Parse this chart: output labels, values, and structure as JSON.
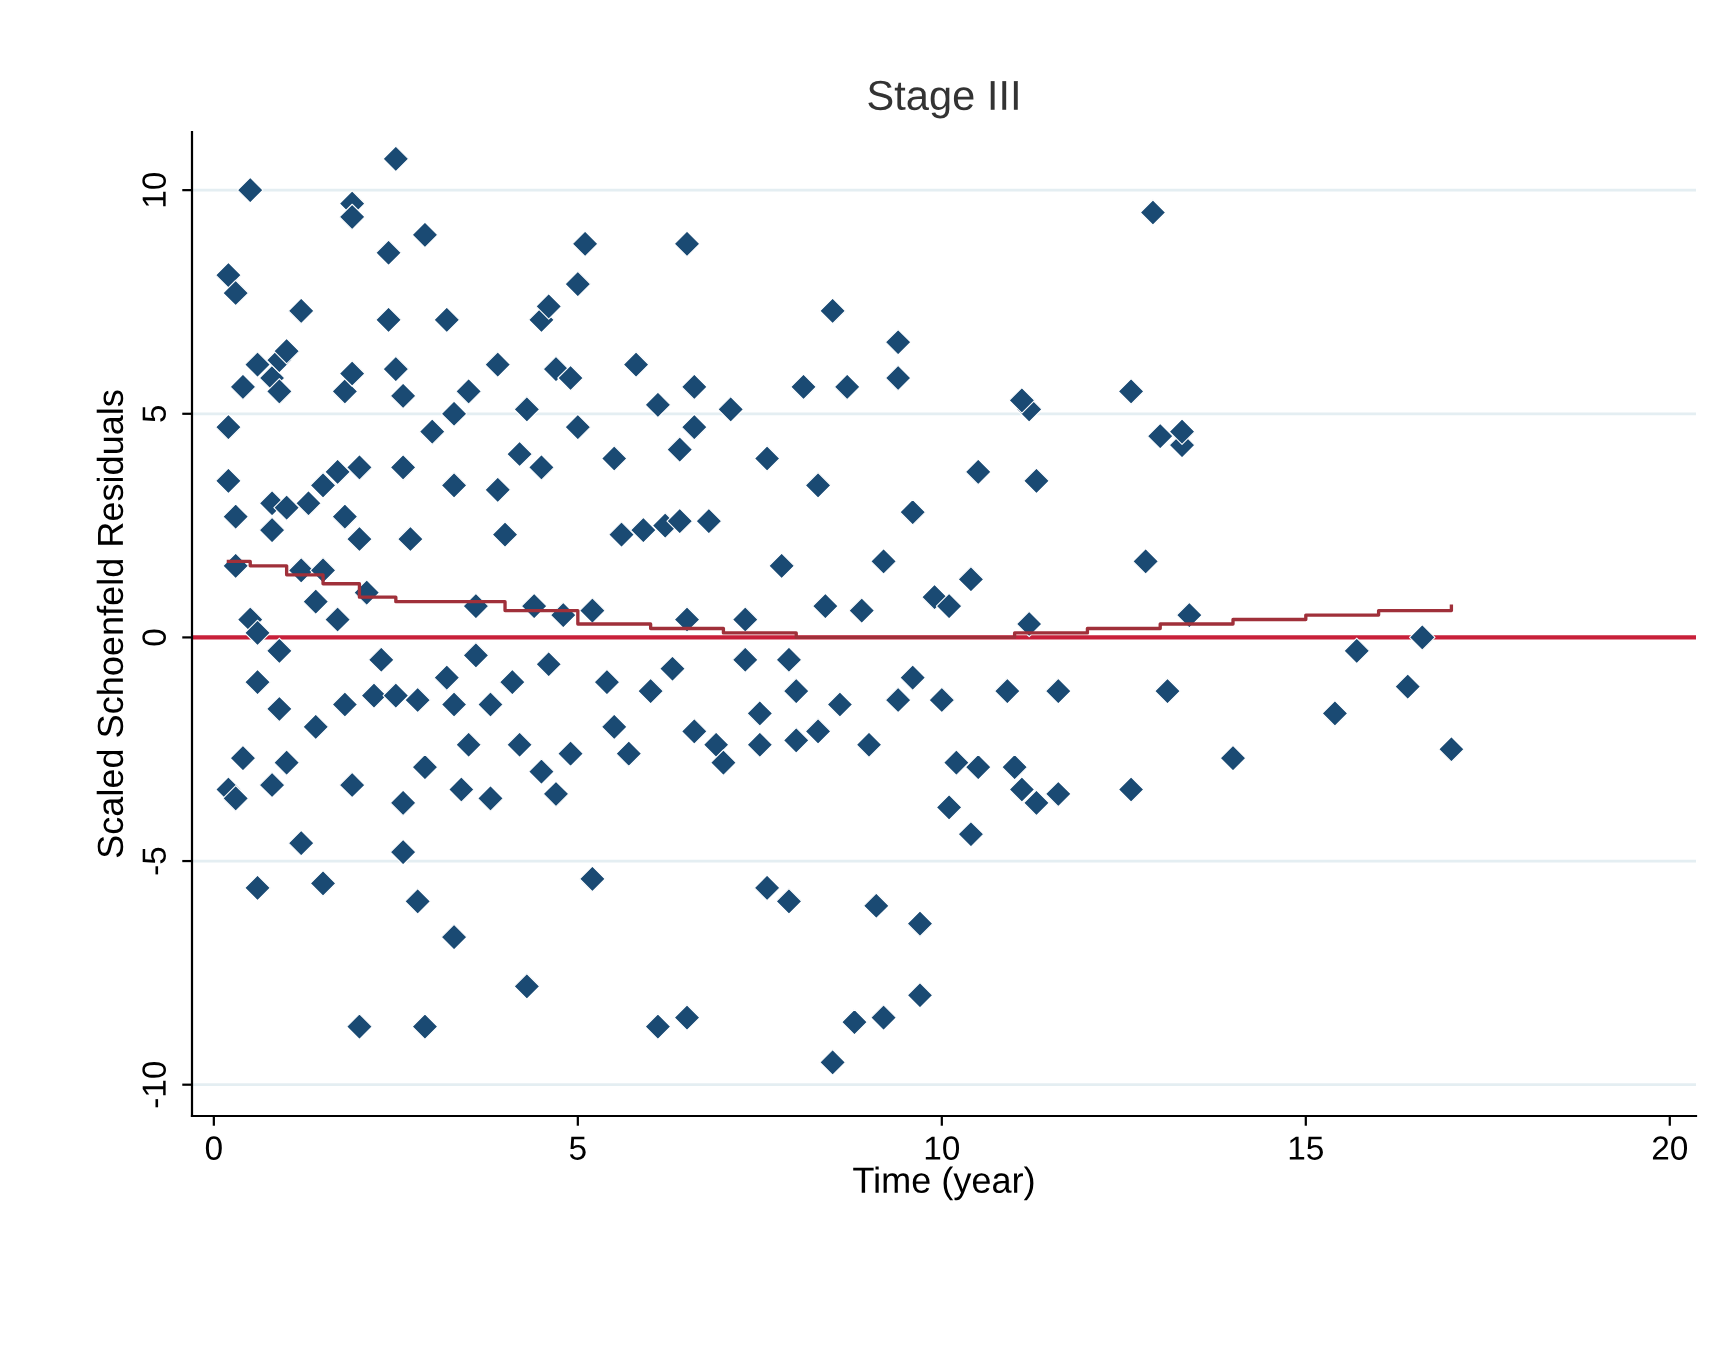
{
  "chart_data": {
    "type": "scatter",
    "title": "Stage III",
    "xlabel": "Time (year)",
    "ylabel": "Scaled Schoenfeld Residuals",
    "xlim": [
      -0.3,
      20.36
    ],
    "ylim": [
      -10.7,
      11.3
    ],
    "xticks": [
      0,
      5,
      10,
      15,
      20
    ],
    "yticks": [
      -10,
      -5,
      0,
      5,
      10
    ],
    "grid": "y",
    "series": [
      {
        "marker": "diamond",
        "color": "#1a4a73",
        "x": [
          0.2,
          0.3,
          0.5,
          0.2,
          0.2,
          0.3,
          0.3,
          0.5,
          0.6,
          0.6,
          0.2,
          0.3,
          0.4,
          0.6,
          0.4,
          0.6,
          0.8,
          0.9,
          1.0,
          0.9,
          1.2,
          0.8,
          1.0,
          0.8,
          1.3,
          1.2,
          1.4,
          0.9,
          0.9,
          1.0,
          0.8,
          1.2,
          1.4,
          1.5,
          1.5,
          1.7,
          1.8,
          1.5,
          1.7,
          1.8,
          1.9,
          1.9,
          1.9,
          2.0,
          2.0,
          2.1,
          1.8,
          1.9,
          2.0,
          2.2,
          2.3,
          2.4,
          2.4,
          2.5,
          2.5,
          2.6,
          2.6,
          2.7,
          2.5,
          2.6,
          2.6,
          2.8,
          2.8,
          2.9,
          2.9,
          2.9,
          3.0,
          3.2,
          3.3,
          3.3,
          3.2,
          3.3,
          3.4,
          3.3,
          3.5,
          3.6,
          3.6,
          3.5,
          3.8,
          3.8,
          3.9,
          3.9,
          4.0,
          4.2,
          4.1,
          4.2,
          4.3,
          4.3,
          4.5,
          4.6,
          4.7,
          4.5,
          4.4,
          4.6,
          4.5,
          4.7,
          4.9,
          4.8,
          4.9,
          5.0,
          5.0,
          5.1,
          5.2,
          5.2,
          5.4,
          5.5,
          5.6,
          5.5,
          5.7,
          5.8,
          5.9,
          6.0,
          6.1,
          6.1,
          6.2,
          6.3,
          6.4,
          6.4,
          6.5,
          6.5,
          6.6,
          6.6,
          6.6,
          6.5,
          6.8,
          6.9,
          7.1,
          7.0,
          7.3,
          7.3,
          7.5,
          7.5,
          7.6,
          7.6,
          7.9,
          7.8,
          7.9,
          8.0,
          8.0,
          8.1,
          8.3,
          8.3,
          8.4,
          8.5,
          8.5,
          8.6,
          8.7,
          8.8,
          8.9,
          9.0,
          9.1,
          9.2,
          9.2,
          9.4,
          9.4,
          9.4,
          9.6,
          9.6,
          9.7,
          9.7,
          9.9,
          10.0,
          10.1,
          10.1,
          10.2,
          10.4,
          10.4,
          10.5,
          10.5,
          10.9,
          11.0,
          11.1,
          11.2,
          11.1,
          11.2,
          11.3,
          11.3,
          11.6,
          11.6,
          12.6,
          12.6,
          12.9,
          12.8,
          13.0,
          13.1,
          13.3,
          13.3,
          13.4,
          14.0,
          15.4,
          15.7,
          16.4,
          16.6,
          17.0
        ],
        "values": [
          8.1,
          7.7,
          10.0,
          4.7,
          3.5,
          2.7,
          1.6,
          0.4,
          0.1,
          -1.0,
          -3.4,
          -3.6,
          -2.7,
          -5.6,
          5.6,
          6.1,
          5.8,
          6.2,
          6.4,
          5.5,
          7.3,
          3.0,
          2.9,
          2.4,
          3.0,
          1.5,
          0.8,
          -0.3,
          -1.6,
          -2.8,
          -3.3,
          -4.6,
          -2.0,
          -5.5,
          3.4,
          3.7,
          2.7,
          1.5,
          0.4,
          5.5,
          5.9,
          9.7,
          9.4,
          3.8,
          2.2,
          1.0,
          -1.5,
          -3.3,
          -8.7,
          -1.3,
          -0.5,
          8.6,
          7.1,
          10.7,
          6.0,
          5.4,
          3.8,
          2.2,
          -1.3,
          -3.7,
          -4.8,
          -5.9,
          -1.4,
          -2.9,
          -8.7,
          9.0,
          4.6,
          7.1,
          5.0,
          3.4,
          -0.9,
          -1.5,
          -3.4,
          -6.7,
          5.5,
          0.7,
          -0.4,
          -2.4,
          -1.5,
          -3.6,
          6.1,
          3.3,
          2.3,
          4.1,
          -1.0,
          -2.4,
          -7.8,
          5.1,
          7.1,
          7.4,
          6.0,
          3.8,
          0.7,
          -0.6,
          -3.0,
          -3.5,
          -2.6,
          0.5,
          5.8,
          4.7,
          7.9,
          8.8,
          -5.4,
          0.6,
          -1.0,
          4.0,
          2.3,
          -2.0,
          -2.6,
          6.1,
          2.4,
          -1.2,
          5.2,
          -8.7,
          2.5,
          -0.7,
          2.6,
          4.2,
          8.8,
          0.4,
          5.6,
          4.7,
          -2.1,
          -8.5,
          2.6,
          -2.4,
          5.1,
          -2.8,
          0.4,
          -0.5,
          -1.7,
          -2.4,
          4.0,
          -5.6,
          -5.9,
          1.6,
          -0.5,
          -1.2,
          -2.3,
          5.6,
          -2.1,
          3.4,
          0.7,
          7.3,
          -9.5,
          -1.5,
          5.6,
          -8.6,
          0.6,
          -2.4,
          -6.0,
          1.7,
          -8.5,
          5.8,
          6.6,
          -1.4,
          2.8,
          -0.9,
          -6.4,
          -8.0,
          0.9,
          -1.4,
          -3.8,
          0.7,
          -2.8,
          1.3,
          -4.4,
          3.7,
          -2.9,
          -1.2,
          -2.9,
          -3.4,
          5.1,
          5.3,
          0.3,
          -3.7,
          3.5,
          -1.2,
          -3.5,
          5.5,
          -3.4,
          9.5,
          1.7,
          4.5,
          -1.2,
          4.3,
          4.6,
          0.5,
          -2.7,
          -1.7,
          -0.3,
          -1.1,
          0.0,
          -2.5
        ]
      },
      {
        "type": "step",
        "color": "#a0303a",
        "x": [
          0.2,
          0.5,
          1.0,
          1.5,
          2.0,
          2.5,
          3.0,
          4.0,
          5.0,
          6.0,
          7.0,
          8.0,
          9.0,
          10.0,
          11.0,
          12.0,
          13.0,
          14.0,
          15.0,
          16.0,
          17.0
        ],
        "values": [
          1.7,
          1.6,
          1.4,
          1.2,
          0.9,
          0.8,
          0.8,
          0.6,
          0.3,
          0.2,
          0.1,
          0.0,
          0.0,
          0.0,
          0.1,
          0.2,
          0.3,
          0.4,
          0.5,
          0.6,
          0.7
        ]
      }
    ],
    "ref_lines": [
      {
        "axis": "y",
        "value": 0,
        "color": "#c8203a"
      }
    ]
  }
}
